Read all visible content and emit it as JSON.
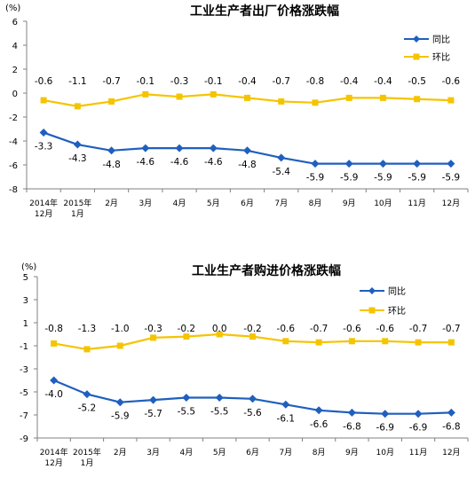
{
  "colors": {
    "yoy": "#1f5fbf",
    "mom": "#f5c400",
    "axis": "#808080"
  },
  "chart_data": [
    {
      "type": "line",
      "title": "工业生产者出厂价格涨跌幅",
      "unit_label": "(%)",
      "ylim": [
        -8,
        6
      ],
      "yticks": [
        "6",
        "4",
        "2",
        "0",
        "-2",
        "-4",
        "-6",
        "-8"
      ],
      "categories": [
        "2014年12月",
        "2015年1月",
        "2月",
        "3月",
        "4月",
        "5月",
        "6月",
        "7月",
        "8月",
        "9月",
        "10月",
        "11月",
        "12月"
      ],
      "xlabels": [
        [
          "2014年",
          "12月"
        ],
        [
          "2015年",
          "1月"
        ],
        [
          "2月",
          ""
        ],
        [
          "3月",
          ""
        ],
        [
          "4月",
          ""
        ],
        [
          "5月",
          ""
        ],
        [
          "6月",
          ""
        ],
        [
          "7月",
          ""
        ],
        [
          "8月",
          ""
        ],
        [
          "9月",
          ""
        ],
        [
          "10月",
          ""
        ],
        [
          "11月",
          ""
        ],
        [
          "12月",
          ""
        ]
      ],
      "legend": {
        "position": "top-right"
      },
      "series": [
        {
          "name": "同比",
          "values": [
            -3.3,
            -4.3,
            -4.8,
            -4.6,
            -4.6,
            -4.6,
            -4.8,
            -5.4,
            -5.9,
            -5.9,
            -5.9,
            -5.9,
            -5.9
          ],
          "labels": [
            "-3.3",
            "-4.3",
            "-4.8",
            "-4.6",
            "-4.6",
            "-4.6",
            "-4.8",
            "-5.4",
            "-5.9",
            "-5.9",
            "-5.9",
            "-5.9",
            "-5.9"
          ]
        },
        {
          "name": "环比",
          "values": [
            -0.6,
            -1.1,
            -0.7,
            -0.1,
            -0.3,
            -0.1,
            -0.4,
            -0.7,
            -0.8,
            -0.4,
            -0.4,
            -0.5,
            -0.6
          ],
          "labels": [
            "-0.6",
            "-1.1",
            "-0.7",
            "-0.1",
            "-0.3",
            "-0.1",
            "-0.4",
            "-0.7",
            "-0.8",
            "-0.4",
            "-0.4",
            "-0.5",
            "-0.6"
          ]
        }
      ]
    },
    {
      "type": "line",
      "title": "工业生产者购进价格涨跌幅",
      "unit_label": "(%)",
      "ylim": [
        -9,
        5
      ],
      "yticks": [
        "5",
        "3",
        "1",
        "-1",
        "-3",
        "-5",
        "-7",
        "-9"
      ],
      "categories": [
        "2014年12月",
        "2015年1月",
        "2月",
        "3月",
        "4月",
        "5月",
        "6月",
        "7月",
        "8月",
        "9月",
        "10月",
        "11月",
        "12月"
      ],
      "xlabels": [
        [
          "2014年",
          "12月"
        ],
        [
          "2015年",
          "1月"
        ],
        [
          "2月",
          ""
        ],
        [
          "3月",
          ""
        ],
        [
          "4月",
          ""
        ],
        [
          "5月",
          ""
        ],
        [
          "6月",
          ""
        ],
        [
          "7月",
          ""
        ],
        [
          "8月",
          ""
        ],
        [
          "9月",
          ""
        ],
        [
          "10月",
          ""
        ],
        [
          "11月",
          ""
        ],
        [
          "12月",
          ""
        ]
      ],
      "legend": {
        "position": "top-right"
      },
      "series": [
        {
          "name": "同比",
          "values": [
            -4.0,
            -5.2,
            -5.9,
            -5.7,
            -5.5,
            -5.5,
            -5.6,
            -6.1,
            -6.6,
            -6.8,
            -6.9,
            -6.9,
            -6.8
          ],
          "labels": [
            "-4.0",
            "-5.2",
            "-5.9",
            "-5.7",
            "-5.5",
            "-5.5",
            "-5.6",
            "-6.1",
            "-6.6",
            "-6.8",
            "-6.9",
            "-6.9",
            "-6.8"
          ]
        },
        {
          "name": "环比",
          "values": [
            -0.8,
            -1.3,
            -1.0,
            -0.3,
            -0.2,
            0.0,
            -0.2,
            -0.6,
            -0.7,
            -0.6,
            -0.6,
            -0.7,
            -0.7
          ],
          "labels": [
            "-0.8",
            "-1.3",
            "-1.0",
            "-0.3",
            "-0.2",
            "0.0",
            "-0.2",
            "-0.6",
            "-0.7",
            "-0.6",
            "-0.6",
            "-0.7",
            "-0.7"
          ]
        }
      ]
    }
  ]
}
